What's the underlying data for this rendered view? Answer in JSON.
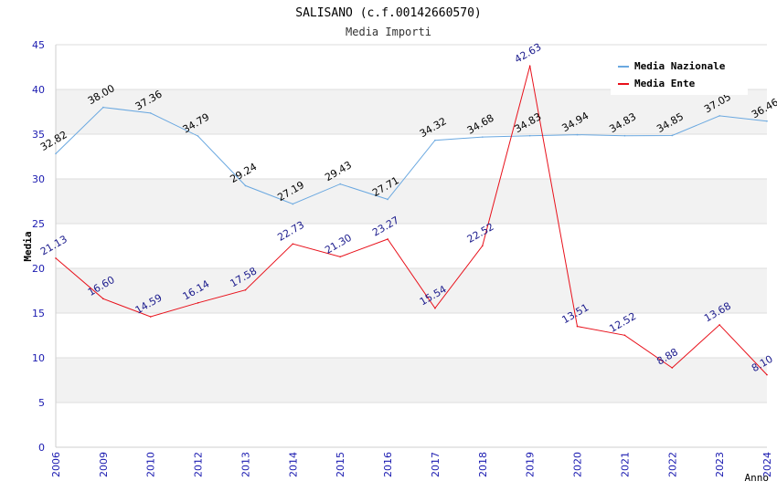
{
  "chart_data": {
    "type": "line",
    "title": "SALISANO (c.f.00142660570)",
    "subtitle": "Media Importi",
    "xlabel": "Anno",
    "ylabel": "Media",
    "ylim": [
      0,
      45
    ],
    "yticks": [
      0,
      5,
      10,
      15,
      20,
      25,
      30,
      35,
      40,
      45
    ],
    "grid": true,
    "legend_position": "top-right",
    "categories": [
      "2006",
      "2009",
      "2010",
      "2012",
      "2013",
      "2014",
      "2015",
      "2016",
      "2017",
      "2018",
      "2019",
      "2020",
      "2021",
      "2022",
      "2023",
      "2024"
    ],
    "series": [
      {
        "name": "Media Nazionale",
        "color": "#6aa8e0",
        "label_color": "#000000",
        "values": [
          32.82,
          38.0,
          37.36,
          34.79,
          29.24,
          27.19,
          29.43,
          27.71,
          34.32,
          34.68,
          34.83,
          34.94,
          34.83,
          34.85,
          37.05,
          36.46
        ],
        "labels": [
          "32.82",
          "38.00",
          "37.36",
          "34.79",
          "29.24",
          "27.19",
          "29.43",
          "27.71",
          "34.32",
          "34.68",
          "34.83",
          "34.94",
          "34.83",
          "34.85",
          "37.05",
          "36.46"
        ]
      },
      {
        "name": "Media Ente",
        "color": "#e8101a",
        "label_color": "#1a1a8c",
        "values": [
          21.13,
          16.6,
          14.59,
          16.14,
          17.58,
          22.73,
          21.3,
          23.27,
          15.54,
          22.52,
          42.63,
          13.51,
          12.52,
          8.88,
          13.68,
          8.1
        ],
        "labels": [
          "21.13",
          "16.60",
          "14.59",
          "16.14",
          "17.58",
          "22.73",
          "21.30",
          "23.27",
          "15.54",
          "22.52",
          "42.63",
          "13.51",
          "12.52",
          "8.88",
          "13.68",
          "8.10"
        ]
      }
    ]
  }
}
